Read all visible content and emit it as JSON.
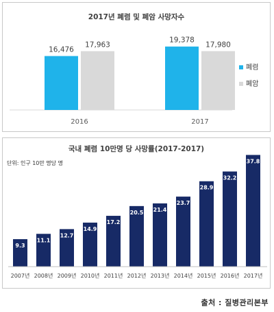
{
  "chart_data": [
    {
      "type": "bar",
      "title": "2017년 폐렴 및 폐암 사망자수",
      "categories": [
        "2016",
        "2017"
      ],
      "series": [
        {
          "name": "폐렴",
          "values": [
            16476,
            19378
          ]
        },
        {
          "name": "폐암",
          "values": [
            17963,
            17980
          ]
        }
      ],
      "value_labels": [
        [
          "16,476",
          "19,378"
        ],
        [
          "17,963",
          "17,980"
        ]
      ],
      "ylim": [
        0,
        21000
      ],
      "grid": false,
      "legend_position": "right",
      "colors": {
        "폐렴": "#1fb3ea",
        "폐암": "#d9d9d9"
      }
    },
    {
      "type": "bar",
      "title": "국내 폐렴 10만명 당 사망률(2017-2017)",
      "unit_label": "단위: 인구 10만 명당 명",
      "categories": [
        "2007년",
        "2008년",
        "2009년",
        "2010년",
        "2011년",
        "2012년",
        "2013년",
        "2014년",
        "2015년",
        "2016년",
        "2017년"
      ],
      "series": [
        {
          "values": [
            9.3,
            11.1,
            12.7,
            14.9,
            17.2,
            20.5,
            21.4,
            23.7,
            28.9,
            32.2,
            37.8
          ]
        }
      ],
      "value_labels": [
        "9.3",
        "11.1",
        "12.7",
        "14.9",
        "17.2",
        "20.5",
        "21.4",
        "23.7",
        "28.9",
        "32.2",
        "37.8"
      ],
      "ylim": [
        0,
        40
      ],
      "grid": false,
      "colors": {
        "bar": "#172a66",
        "label": "#ffffff"
      }
    }
  ],
  "source": "출처 : 질병관리본부"
}
